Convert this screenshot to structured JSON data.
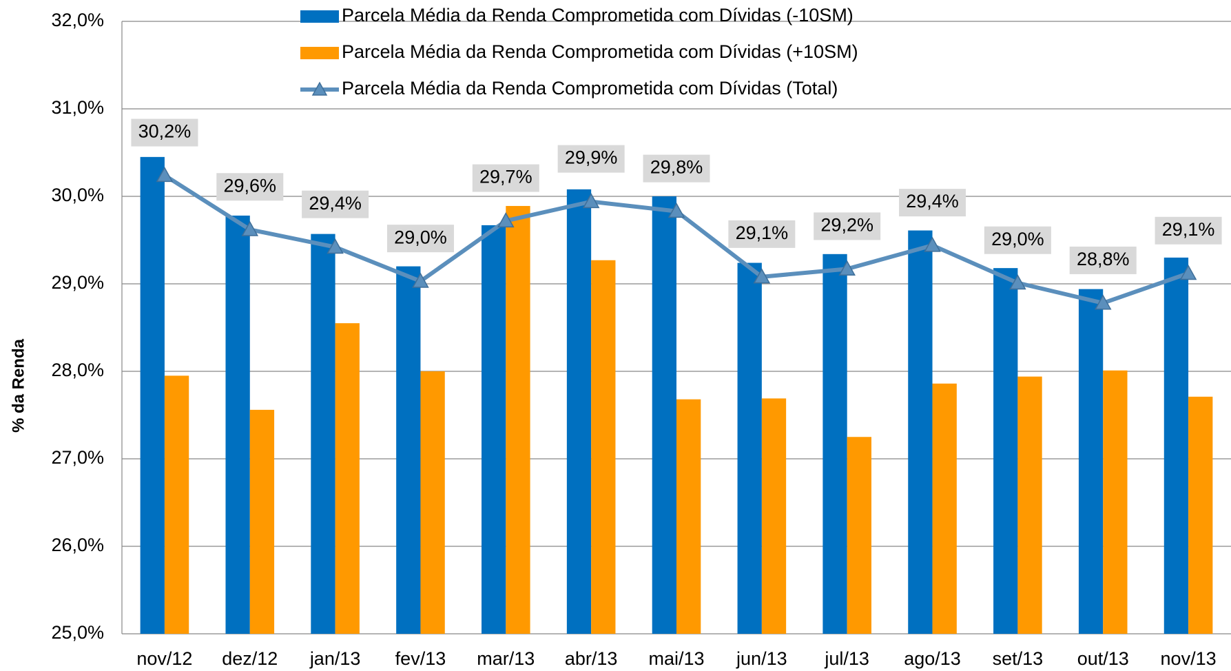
{
  "chart_data": {
    "type": "bar-line",
    "y_axis_label": "% da Renda",
    "categories": [
      "nov/12",
      "dez/12",
      "jan/13",
      "fev/13",
      "mar/13",
      "abr/13",
      "mai/13",
      "jun/13",
      "jul/13",
      "ago/13",
      "set/13",
      "out/13",
      "nov/13"
    ],
    "series": [
      {
        "name": "Parcela Média da Renda Comprometida com Dívidas (-10SM)",
        "type": "bar",
        "color": "#0070c0",
        "values": [
          30.45,
          29.78,
          29.57,
          29.2,
          29.67,
          30.08,
          30.0,
          29.24,
          29.34,
          29.61,
          29.18,
          28.94,
          29.3
        ]
      },
      {
        "name": "Parcela Média da Renda Comprometida com Dívidas (+10SM)",
        "type": "bar",
        "color": "#ff9900",
        "values": [
          27.95,
          27.56,
          28.55,
          28.0,
          29.89,
          29.27,
          27.68,
          27.69,
          27.25,
          27.86,
          27.94,
          28.01,
          27.71
        ]
      },
      {
        "name": "Parcela Média da Renda Comprometida com Dívidas (Total)",
        "type": "line",
        "color": "#5b8fbc",
        "values": [
          30.24,
          29.62,
          29.42,
          29.03,
          29.72,
          29.94,
          29.83,
          29.08,
          29.17,
          29.44,
          29.01,
          28.78,
          29.12
        ],
        "value_labels": [
          "30,2%",
          "29,6%",
          "29,4%",
          "29,0%",
          "29,7%",
          "29,9%",
          "29,8%",
          "29,1%",
          "29,2%",
          "29,4%",
          "29,0%",
          "28,8%",
          "29,1%"
        ]
      }
    ],
    "ylim": [
      25,
      32
    ],
    "yticks": [
      {
        "value": 25,
        "label": "25,0%"
      },
      {
        "value": 26,
        "label": "26,0%"
      },
      {
        "value": 27,
        "label": "27,0%"
      },
      {
        "value": 28,
        "label": "28,0%"
      },
      {
        "value": 29,
        "label": "29,0%"
      },
      {
        "value": 30,
        "label": "30,0%"
      },
      {
        "value": 31,
        "label": "31,0%"
      },
      {
        "value": 32,
        "label": "32,0%"
      }
    ],
    "grid": true,
    "legend": "top"
  }
}
